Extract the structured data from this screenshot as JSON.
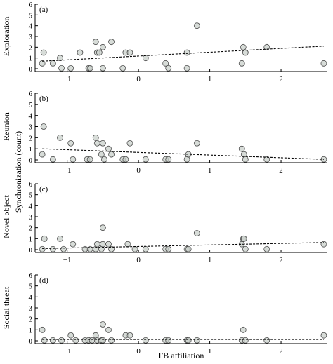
{
  "chart_data": {
    "type": "scatter",
    "xlabel": "FB affiliation",
    "shared_ylabel": "Synchronization (count)",
    "xlim": [
      -1.45,
      2.65
    ],
    "xticks": [
      -1,
      0,
      1,
      2
    ],
    "ylim": [
      0,
      6
    ],
    "yticks": [
      0,
      1,
      2,
      3,
      4,
      5,
      6
    ],
    "panels": [
      {
        "letter": "(a)",
        "name": "Exploration",
        "trend": {
          "x": [
            -1.35,
            2.6
          ],
          "y": [
            0.7,
            2.1
          ]
        },
        "points": [
          [
            -1.35,
            0.5
          ],
          [
            -1.33,
            1.5
          ],
          [
            -1.2,
            0.5
          ],
          [
            -1.1,
            1.0
          ],
          [
            -1.08,
            0.05
          ],
          [
            -0.95,
            0.05
          ],
          [
            -0.82,
            1.5
          ],
          [
            -0.7,
            0.05
          ],
          [
            -0.68,
            0.05
          ],
          [
            -0.6,
            2.5
          ],
          [
            -0.58,
            1.5
          ],
          [
            -0.55,
            1.5
          ],
          [
            -0.5,
            2.0
          ],
          [
            -0.5,
            0.05
          ],
          [
            -0.38,
            2.5
          ],
          [
            -0.22,
            0.05
          ],
          [
            -0.18,
            1.5
          ],
          [
            -0.12,
            1.5
          ],
          [
            0.1,
            1.0
          ],
          [
            0.38,
            0.5
          ],
          [
            0.42,
            0.05
          ],
          [
            0.68,
            0.05
          ],
          [
            0.68,
            1.5
          ],
          [
            0.82,
            4.0
          ],
          [
            1.45,
            0.5
          ],
          [
            1.47,
            2.0
          ],
          [
            1.5,
            1.5
          ],
          [
            1.8,
            2.0
          ],
          [
            2.6,
            0.5
          ]
        ]
      },
      {
        "letter": "(b)",
        "name": "Reunion",
        "trend": {
          "x": [
            -1.35,
            2.6
          ],
          "y": [
            1.0,
            0.05
          ]
        },
        "points": [
          [
            -1.35,
            0.5
          ],
          [
            -1.33,
            3.0
          ],
          [
            -1.2,
            0.05
          ],
          [
            -1.1,
            2.0
          ],
          [
            -0.95,
            1.5
          ],
          [
            -0.92,
            0.05
          ],
          [
            -0.72,
            0.05
          ],
          [
            -0.68,
            0.05
          ],
          [
            -0.6,
            2.0
          ],
          [
            -0.58,
            1.5
          ],
          [
            -0.52,
            0.5
          ],
          [
            -0.5,
            1.5
          ],
          [
            -0.48,
            0.05
          ],
          [
            -0.42,
            1.0
          ],
          [
            -0.38,
            0.5
          ],
          [
            -0.22,
            0.05
          ],
          [
            -0.18,
            0.05
          ],
          [
            -0.12,
            1.5
          ],
          [
            0.1,
            0.05
          ],
          [
            0.38,
            0.05
          ],
          [
            0.42,
            0.05
          ],
          [
            0.68,
            0.05
          ],
          [
            0.7,
            0.5
          ],
          [
            0.82,
            1.5
          ],
          [
            1.45,
            1.0
          ],
          [
            1.48,
            0.5
          ],
          [
            1.5,
            0.05
          ],
          [
            1.8,
            0.05
          ],
          [
            2.6,
            0.05
          ]
        ]
      },
      {
        "letter": "(c)",
        "name": "Novel object",
        "trend": {
          "x": [
            -1.35,
            2.6
          ],
          "y": [
            0.1,
            0.65
          ]
        },
        "points": [
          [
            -1.35,
            0.05
          ],
          [
            -1.32,
            1.0
          ],
          [
            -1.2,
            0.05
          ],
          [
            -1.1,
            1.0
          ],
          [
            -1.05,
            0.05
          ],
          [
            -0.92,
            0.5
          ],
          [
            -0.75,
            0.05
          ],
          [
            -0.68,
            0.05
          ],
          [
            -0.6,
            0.05
          ],
          [
            -0.58,
            0.5
          ],
          [
            -0.52,
            0.05
          ],
          [
            -0.5,
            0.5
          ],
          [
            -0.5,
            2.0
          ],
          [
            -0.42,
            0.5
          ],
          [
            -0.38,
            0.05
          ],
          [
            -0.15,
            0.5
          ],
          [
            -0.05,
            0.05
          ],
          [
            0.1,
            0.05
          ],
          [
            0.38,
            0.05
          ],
          [
            0.42,
            0.05
          ],
          [
            0.68,
            0.05
          ],
          [
            0.7,
            0.05
          ],
          [
            0.82,
            1.5
          ],
          [
            1.45,
            0.5
          ],
          [
            1.47,
            1.0
          ],
          [
            1.48,
            1.0
          ],
          [
            1.5,
            0.05
          ],
          [
            1.8,
            0.05
          ],
          [
            2.6,
            0.5
          ]
        ]
      },
      {
        "letter": "(d)",
        "name": "Social threat",
        "trend": {
          "x": [
            -1.35,
            2.6
          ],
          "y": [
            0.12,
            0.12
          ]
        },
        "points": [
          [
            -1.35,
            1.0
          ],
          [
            -1.32,
            0.05
          ],
          [
            -1.2,
            0.05
          ],
          [
            -1.08,
            0.05
          ],
          [
            -0.95,
            0.5
          ],
          [
            -0.88,
            0.05
          ],
          [
            -0.75,
            0.05
          ],
          [
            -0.7,
            0.05
          ],
          [
            -0.65,
            0.05
          ],
          [
            -0.6,
            0.5
          ],
          [
            -0.58,
            0.05
          ],
          [
            -0.52,
            0.05
          ],
          [
            -0.5,
            0.05
          ],
          [
            -0.5,
            1.5
          ],
          [
            -0.42,
            1.0
          ],
          [
            -0.38,
            0.05
          ],
          [
            -0.18,
            0.5
          ],
          [
            -0.12,
            0.5
          ],
          [
            0.1,
            0.05
          ],
          [
            0.38,
            0.05
          ],
          [
            0.42,
            0.05
          ],
          [
            0.68,
            0.05
          ],
          [
            0.7,
            0.05
          ],
          [
            0.82,
            0.05
          ],
          [
            1.45,
            0.05
          ],
          [
            1.47,
            1.0
          ],
          [
            1.5,
            0.05
          ],
          [
            1.8,
            0.05
          ],
          [
            2.6,
            0.5
          ]
        ]
      }
    ]
  }
}
